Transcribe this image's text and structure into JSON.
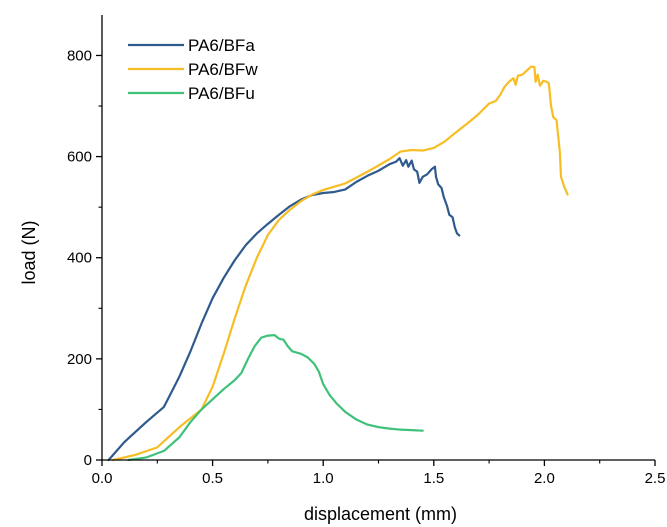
{
  "chart_data": {
    "type": "line",
    "title": "",
    "xlabel": "displacement (mm)",
    "ylabel": "load (N)",
    "xlim": [
      0.0,
      2.5
    ],
    "ylim": [
      0,
      880
    ],
    "x_ticks": [
      0.0,
      0.5,
      1.0,
      1.5,
      2.0,
      2.5
    ],
    "x_tick_labels": [
      "0.0",
      "0.5",
      "1.0",
      "1.5",
      "2.0",
      "2.5"
    ],
    "y_ticks": [
      0,
      200,
      400,
      600,
      800
    ],
    "y_tick_labels": [
      "0",
      "200",
      "400",
      "600",
      "800"
    ],
    "grid": false,
    "legend_position": "top-left",
    "series": [
      {
        "name": "PA6/BFa",
        "color": "#2e5a8e",
        "points": [
          [
            0.03,
            0
          ],
          [
            0.1,
            35
          ],
          [
            0.2,
            75
          ],
          [
            0.28,
            105
          ],
          [
            0.35,
            165
          ],
          [
            0.4,
            215
          ],
          [
            0.45,
            270
          ],
          [
            0.5,
            320
          ],
          [
            0.55,
            360
          ],
          [
            0.6,
            395
          ],
          [
            0.65,
            425
          ],
          [
            0.7,
            448
          ],
          [
            0.75,
            467
          ],
          [
            0.8,
            485
          ],
          [
            0.85,
            502
          ],
          [
            0.9,
            515
          ],
          [
            0.95,
            524
          ],
          [
            1.0,
            528
          ],
          [
            1.05,
            530
          ],
          [
            1.1,
            535
          ],
          [
            1.15,
            550
          ],
          [
            1.2,
            562
          ],
          [
            1.25,
            572
          ],
          [
            1.3,
            585
          ],
          [
            1.33,
            590
          ],
          [
            1.345,
            597
          ],
          [
            1.36,
            582
          ],
          [
            1.375,
            593
          ],
          [
            1.385,
            580
          ],
          [
            1.4,
            592
          ],
          [
            1.41,
            575
          ],
          [
            1.425,
            570
          ],
          [
            1.435,
            548
          ],
          [
            1.45,
            560
          ],
          [
            1.47,
            565
          ],
          [
            1.49,
            575
          ],
          [
            1.505,
            580
          ],
          [
            1.51,
            560
          ],
          [
            1.52,
            545
          ],
          [
            1.535,
            538
          ],
          [
            1.545,
            520
          ],
          [
            1.56,
            502
          ],
          [
            1.57,
            485
          ],
          [
            1.585,
            480
          ],
          [
            1.595,
            460
          ],
          [
            1.605,
            448
          ],
          [
            1.615,
            444
          ]
        ]
      },
      {
        "name": "PA6/BFw",
        "color": "#f7bd24",
        "points": [
          [
            0.05,
            0
          ],
          [
            0.15,
            10
          ],
          [
            0.25,
            25
          ],
          [
            0.3,
            45
          ],
          [
            0.35,
            65
          ],
          [
            0.45,
            100
          ],
          [
            0.5,
            145
          ],
          [
            0.55,
            210
          ],
          [
            0.6,
            280
          ],
          [
            0.65,
            345
          ],
          [
            0.7,
            400
          ],
          [
            0.75,
            445
          ],
          [
            0.8,
            475
          ],
          [
            0.85,
            495
          ],
          [
            0.9,
            512
          ],
          [
            0.95,
            525
          ],
          [
            1.0,
            534
          ],
          [
            1.1,
            547
          ],
          [
            1.2,
            570
          ],
          [
            1.3,
            595
          ],
          [
            1.35,
            610
          ],
          [
            1.4,
            613
          ],
          [
            1.45,
            612
          ],
          [
            1.5,
            617
          ],
          [
            1.55,
            630
          ],
          [
            1.6,
            648
          ],
          [
            1.65,
            665
          ],
          [
            1.7,
            683
          ],
          [
            1.75,
            705
          ],
          [
            1.78,
            710
          ],
          [
            1.8,
            722
          ],
          [
            1.82,
            738
          ],
          [
            1.84,
            748
          ],
          [
            1.86,
            755
          ],
          [
            1.87,
            742
          ],
          [
            1.88,
            760
          ],
          [
            1.9,
            762
          ],
          [
            1.92,
            770
          ],
          [
            1.94,
            778
          ],
          [
            1.955,
            777
          ],
          [
            1.96,
            748
          ],
          [
            1.97,
            762
          ],
          [
            1.98,
            740
          ],
          [
            1.995,
            750
          ],
          [
            2.01,
            748
          ],
          [
            2.02,
            745
          ],
          [
            2.03,
            700
          ],
          [
            2.04,
            678
          ],
          [
            2.055,
            672
          ],
          [
            2.07,
            608
          ],
          [
            2.075,
            560
          ],
          [
            2.09,
            540
          ],
          [
            2.105,
            525
          ]
        ]
      },
      {
        "name": "PA6/BFu",
        "color": "#3fc17a",
        "points": [
          [
            0.12,
            0
          ],
          [
            0.2,
            5
          ],
          [
            0.28,
            18
          ],
          [
            0.35,
            45
          ],
          [
            0.4,
            75
          ],
          [
            0.45,
            100
          ],
          [
            0.5,
            120
          ],
          [
            0.55,
            140
          ],
          [
            0.6,
            158
          ],
          [
            0.63,
            172
          ],
          [
            0.66,
            200
          ],
          [
            0.69,
            225
          ],
          [
            0.72,
            242
          ],
          [
            0.75,
            246
          ],
          [
            0.78,
            247
          ],
          [
            0.8,
            240
          ],
          [
            0.82,
            238
          ],
          [
            0.84,
            225
          ],
          [
            0.86,
            215
          ],
          [
            0.9,
            210
          ],
          [
            0.93,
            203
          ],
          [
            0.96,
            190
          ],
          [
            0.98,
            175
          ],
          [
            1.0,
            150
          ],
          [
            1.03,
            128
          ],
          [
            1.06,
            112
          ],
          [
            1.1,
            95
          ],
          [
            1.15,
            80
          ],
          [
            1.2,
            70
          ],
          [
            1.25,
            65
          ],
          [
            1.3,
            62
          ],
          [
            1.35,
            60
          ],
          [
            1.4,
            59
          ],
          [
            1.45,
            58
          ]
        ]
      }
    ]
  }
}
